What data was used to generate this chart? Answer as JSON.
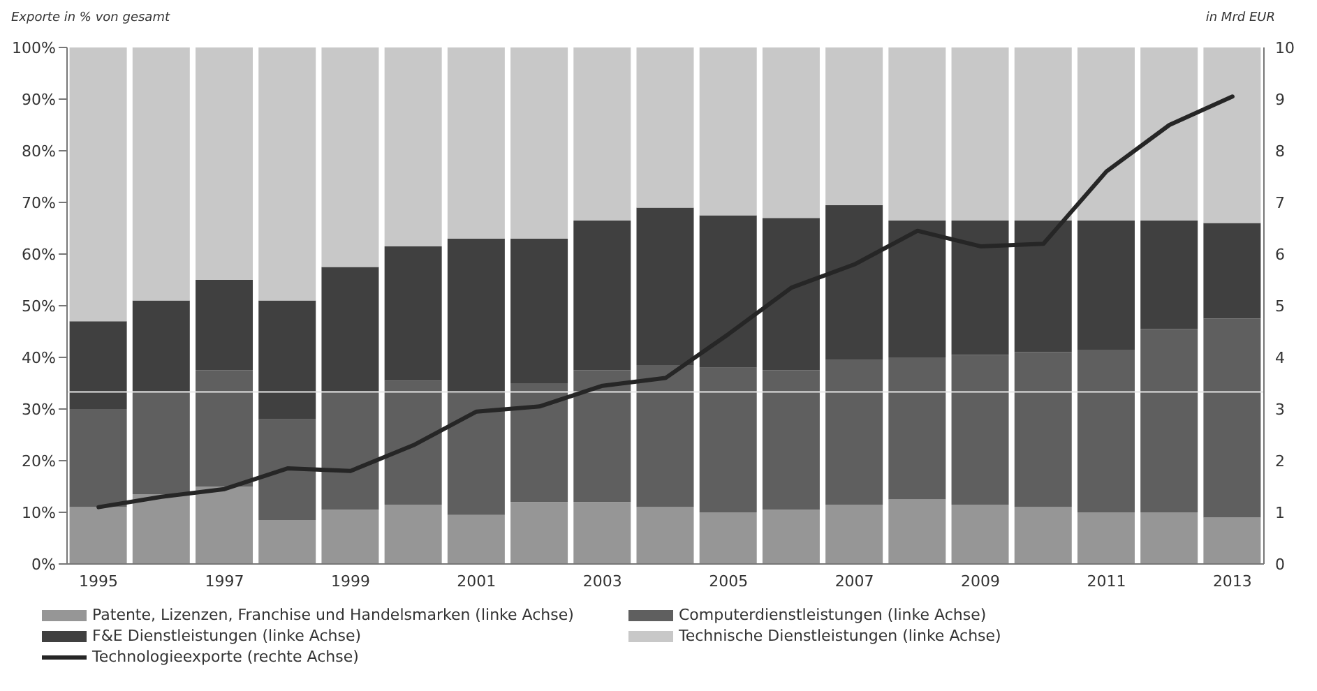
{
  "chart_data": {
    "type": "bar",
    "stacked": true,
    "ylabel": "Exporte in % von gesamt",
    "y2label": "in Mrd EUR",
    "categories": [
      "1995",
      null,
      "1997",
      null,
      "1999",
      null,
      "2001",
      null,
      "2003",
      null,
      "2005",
      null,
      "2007",
      null,
      "2009",
      null,
      "2011",
      null,
      "2013"
    ],
    "series": [
      {
        "name": "Patente, Lizenzen, Franchise und Handelsmarken (linke Achse)",
        "color": "#969696",
        "values": [
          11,
          13.5,
          15,
          8.5,
          10.5,
          11.5,
          9.5,
          12,
          12,
          11,
          10,
          10.5,
          11.5,
          12.5,
          11.5,
          11,
          10,
          10,
          9
        ]
      },
      {
        "name": "Computerdienstleistungen (linke Achse)",
        "color": "#5f5f5f",
        "values": [
          19,
          20,
          22.5,
          19.5,
          23,
          24,
          23.5,
          23,
          25.5,
          27.5,
          28,
          27,
          28,
          27.5,
          29,
          30,
          31.5,
          35.5,
          38.5
        ]
      },
      {
        "name": "F&E Dienstleistungen (linke Achse)",
        "color": "#404040",
        "values": [
          17,
          17.5,
          17.5,
          23,
          24,
          26,
          30,
          28,
          29,
          30.5,
          29.5,
          29.5,
          30,
          26.5,
          26,
          25.5,
          25,
          21,
          18.5
        ]
      },
      {
        "name": "Technische Dienstleistungen (linke Achse)",
        "color": "#c8c8c8",
        "values": [
          53,
          49,
          45,
          49,
          42.5,
          38.5,
          37,
          37,
          33.5,
          31,
          32.5,
          33,
          30.5,
          33.5,
          33.5,
          33.5,
          33.5,
          33.5,
          34
        ]
      },
      {
        "name": "Technologieexporte (rechte Achse)",
        "type": "line",
        "axis": "y2",
        "color": "#262626",
        "values": [
          1.1,
          1.3,
          1.45,
          1.85,
          1.8,
          2.3,
          2.95,
          3.05,
          3.45,
          3.6,
          4.45,
          5.35,
          5.8,
          6.45,
          6.15,
          6.2,
          7.6,
          8.5,
          9.05
        ]
      }
    ],
    "ylim": [
      0,
      100
    ],
    "yticks": [
      {
        "value": 0,
        "label": "0%"
      },
      {
        "value": 10,
        "label": "10%"
      },
      {
        "value": 20,
        "label": "20%"
      },
      {
        "value": 30,
        "label": "30%"
      },
      {
        "value": 40,
        "label": "40%"
      },
      {
        "value": 50,
        "label": "50%"
      },
      {
        "value": 60,
        "label": "60%"
      },
      {
        "value": 70,
        "label": "70%"
      },
      {
        "value": 80,
        "label": "80%"
      },
      {
        "value": 90,
        "label": "90%"
      },
      {
        "value": 100,
        "label": "100%"
      }
    ],
    "y2lim": [
      0,
      10
    ],
    "y2ticks": [
      0,
      1,
      2,
      3,
      4,
      5,
      6,
      7,
      8,
      9,
      10
    ],
    "ref_lines": [
      {
        "axis": "y",
        "value": 33.3,
        "color": "#e6e6e6"
      }
    ],
    "grid": false,
    "legend": "bottom",
    "marker": "none",
    "line_style": "solid"
  }
}
